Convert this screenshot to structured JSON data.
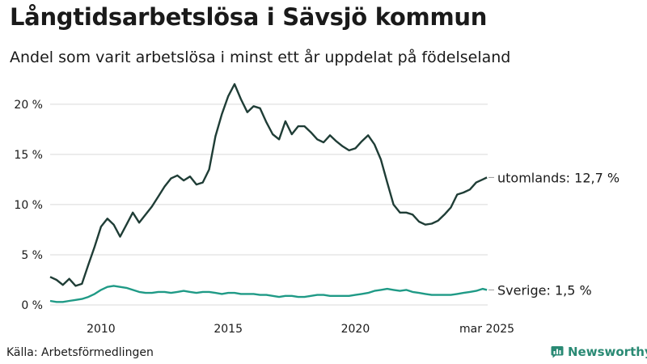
{
  "title": "Långtidsarbetslösa i Sävsjö kommun",
  "subtitle": "Andel som varit arbetslösa i minst ett år uppdelat på födelseland",
  "source": "Källa: Arbetsförmedlingen",
  "brand": "Newsworthy",
  "colors": {
    "utomlands": "#1f3d36",
    "sverige": "#1f9a86",
    "brand": "#2a8a74",
    "grid": "#d9d9d9"
  },
  "chart_data": {
    "type": "line",
    "xlim": [
      2008.0,
      2025.2
    ],
    "ylim": [
      0,
      22
    ],
    "y_ticks": [
      0,
      5,
      10,
      15,
      20
    ],
    "y_tick_labels": [
      "0 %",
      "5 %",
      "10 %",
      "15 %",
      "20 %"
    ],
    "x_ticks": [
      2010,
      2015,
      2020,
      2025.17
    ],
    "x_tick_labels": [
      "2010",
      "2015",
      "2020",
      "mar 2025"
    ],
    "grid": "horizontal",
    "series": [
      {
        "name": "utomlands",
        "end_label": "utomlands: 12,7 %",
        "x": [
          2008.0,
          2008.25,
          2008.5,
          2008.75,
          2009.0,
          2009.25,
          2009.5,
          2009.75,
          2010.0,
          2010.25,
          2010.5,
          2010.75,
          2011.0,
          2011.25,
          2011.5,
          2011.75,
          2012.0,
          2012.25,
          2012.5,
          2012.75,
          2013.0,
          2013.25,
          2013.5,
          2013.75,
          2014.0,
          2014.25,
          2014.5,
          2014.75,
          2015.0,
          2015.25,
          2015.5,
          2015.75,
          2016.0,
          2016.25,
          2016.5,
          2016.75,
          2017.0,
          2017.25,
          2017.5,
          2017.75,
          2018.0,
          2018.25,
          2018.5,
          2018.75,
          2019.0,
          2019.25,
          2019.5,
          2019.75,
          2020.0,
          2020.25,
          2020.5,
          2020.75,
          2021.0,
          2021.25,
          2021.5,
          2021.75,
          2022.0,
          2022.25,
          2022.5,
          2022.75,
          2023.0,
          2023.25,
          2023.5,
          2023.75,
          2024.0,
          2024.25,
          2024.5,
          2024.75,
          2025.0,
          2025.17
        ],
        "values": [
          2.8,
          2.5,
          2.0,
          2.6,
          1.9,
          2.1,
          4.0,
          5.8,
          7.8,
          8.6,
          8.0,
          6.8,
          8.0,
          9.2,
          8.2,
          9.0,
          9.8,
          10.8,
          11.8,
          12.6,
          12.9,
          12.4,
          12.8,
          12.0,
          12.2,
          13.5,
          16.8,
          19.0,
          20.8,
          22.0,
          20.5,
          19.2,
          19.8,
          19.6,
          18.2,
          17.0,
          16.5,
          18.3,
          17.0,
          17.8,
          17.8,
          17.2,
          16.5,
          16.2,
          16.9,
          16.3,
          15.8,
          15.4,
          15.6,
          16.3,
          16.9,
          16.0,
          14.5,
          12.2,
          10.0,
          9.2,
          9.2,
          9.0,
          8.3,
          8.0,
          8.1,
          8.4,
          9.0,
          9.7,
          11.0,
          11.2,
          11.5,
          12.2,
          12.5,
          12.7
        ]
      },
      {
        "name": "Sverige",
        "end_label": "Sverige:  1,5 %",
        "x": [
          2008.0,
          2008.25,
          2008.5,
          2008.75,
          2009.0,
          2009.25,
          2009.5,
          2009.75,
          2010.0,
          2010.25,
          2010.5,
          2010.75,
          2011.0,
          2011.25,
          2011.5,
          2011.75,
          2012.0,
          2012.25,
          2012.5,
          2012.75,
          2013.0,
          2013.25,
          2013.5,
          2013.75,
          2014.0,
          2014.25,
          2014.5,
          2014.75,
          2015.0,
          2015.25,
          2015.5,
          2015.75,
          2016.0,
          2016.25,
          2016.5,
          2016.75,
          2017.0,
          2017.25,
          2017.5,
          2017.75,
          2018.0,
          2018.25,
          2018.5,
          2018.75,
          2019.0,
          2019.25,
          2019.5,
          2019.75,
          2020.0,
          2020.25,
          2020.5,
          2020.75,
          2021.0,
          2021.25,
          2021.5,
          2021.75,
          2022.0,
          2022.25,
          2022.5,
          2022.75,
          2023.0,
          2023.25,
          2023.5,
          2023.75,
          2024.0,
          2024.25,
          2024.5,
          2024.75,
          2025.0,
          2025.17
        ],
        "values": [
          0.4,
          0.3,
          0.3,
          0.4,
          0.5,
          0.6,
          0.8,
          1.1,
          1.5,
          1.8,
          1.9,
          1.8,
          1.7,
          1.5,
          1.3,
          1.2,
          1.2,
          1.3,
          1.3,
          1.2,
          1.3,
          1.4,
          1.3,
          1.2,
          1.3,
          1.3,
          1.2,
          1.1,
          1.2,
          1.2,
          1.1,
          1.1,
          1.1,
          1.0,
          1.0,
          0.9,
          0.8,
          0.9,
          0.9,
          0.8,
          0.8,
          0.9,
          1.0,
          1.0,
          0.9,
          0.9,
          0.9,
          0.9,
          1.0,
          1.1,
          1.2,
          1.4,
          1.5,
          1.6,
          1.5,
          1.4,
          1.5,
          1.3,
          1.2,
          1.1,
          1.0,
          1.0,
          1.0,
          1.0,
          1.1,
          1.2,
          1.3,
          1.4,
          1.6,
          1.5
        ]
      }
    ]
  }
}
